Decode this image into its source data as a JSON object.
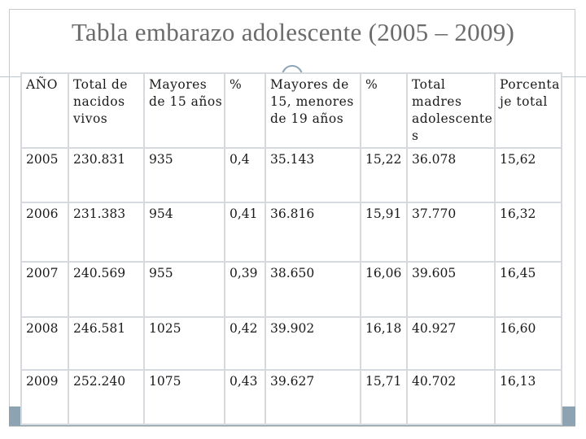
{
  "slide": {
    "title": "Tabla embarazo adolescente (2005 – 2009)",
    "colors": {
      "title": "#6b6b6b",
      "accent": "#8da3b2",
      "border": "#d6dadf"
    }
  },
  "table": {
    "headers": [
      "AÑO",
      "Total de nacidos vivos",
      "Mayores de 15 años",
      "%",
      "Mayores de 15, menores de 19 años",
      "%",
      "Total madres adolescentes",
      "Porcentaje total"
    ],
    "rows": [
      [
        "2005",
        "230.831",
        "935",
        "0,4",
        "35.143",
        "15,22",
        "36.078",
        "15,62"
      ],
      [
        "2006",
        "231.383",
        "954",
        "0,41",
        "36.816",
        "15,91",
        "37.770",
        "16,32"
      ],
      [
        "2007",
        "240.569",
        "955",
        "0,39",
        "38.650",
        "16,06",
        "39.605",
        "16,45"
      ],
      [
        "2008",
        "246.581",
        "1025",
        "0,42",
        "39.902",
        "16,18",
        "40.927",
        "16,60"
      ],
      [
        "2009",
        "252.240",
        "1075",
        "0,43",
        "39.627",
        "15,71",
        "40.702",
        "16,13"
      ]
    ]
  }
}
